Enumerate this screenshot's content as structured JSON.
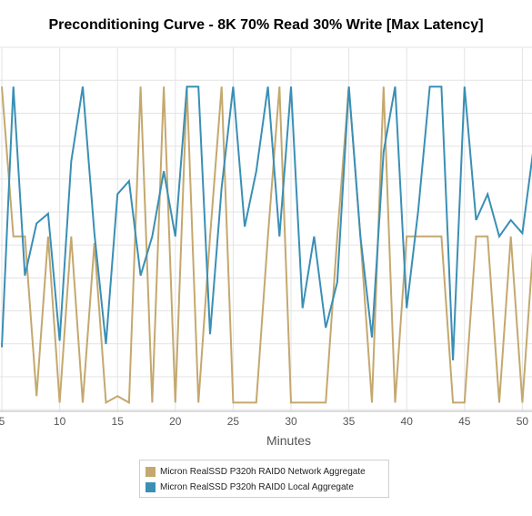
{
  "chart_data": {
    "type": "line",
    "title": "Preconditioning Curve - 8K 70% Read 30% Write [Max Latency]",
    "xlabel": "Minutes",
    "ylabel": "",
    "xlim": [
      5,
      51.5
    ],
    "ylim": [
      0,
      100
    ],
    "x_ticks": [
      5,
      10,
      15,
      20,
      25,
      30,
      35,
      40,
      45,
      50
    ],
    "grid": true,
    "legend_position": "bottom",
    "series": [
      {
        "name": "Micron RealSSD P320h RAID0 Network Aggregate",
        "color": "#c4a86e",
        "x": [
          5,
          6,
          7,
          8,
          9,
          10,
          11,
          12,
          13,
          14,
          15,
          16,
          17,
          18,
          19,
          20,
          21,
          22,
          23,
          24,
          25,
          26,
          27,
          28,
          29,
          30,
          31,
          32,
          33,
          34,
          35,
          36,
          37,
          38,
          39,
          40,
          41,
          42,
          43,
          44,
          45,
          46,
          47,
          48,
          49,
          50,
          51
        ],
        "y": [
          98,
          52,
          52,
          3,
          52,
          1,
          52,
          1,
          50,
          1,
          3,
          1,
          98,
          1,
          98,
          1,
          98,
          1,
          52,
          98,
          1,
          1,
          1,
          52,
          98,
          1,
          1,
          1,
          1,
          52,
          98,
          52,
          1,
          98,
          1,
          52,
          52,
          52,
          52,
          1,
          1,
          52,
          52,
          1,
          52,
          1,
          52
        ]
      },
      {
        "name": "Micron RealSSD P320h RAID0 Local Aggregate",
        "color": "#3a8fb5",
        "x": [
          5,
          6,
          7,
          8,
          9,
          10,
          11,
          12,
          13,
          14,
          15,
          16,
          17,
          18,
          19,
          20,
          21,
          22,
          23,
          24,
          25,
          26,
          27,
          28,
          29,
          30,
          31,
          32,
          33,
          34,
          35,
          36,
          37,
          38,
          39,
          40,
          41,
          42,
          43,
          44,
          45,
          46,
          47,
          48,
          49,
          50,
          51
        ],
        "y": [
          18,
          98,
          40,
          56,
          59,
          20,
          75,
          98,
          53,
          19,
          65,
          69,
          40,
          52,
          72,
          52,
          98,
          98,
          22,
          67,
          98,
          55,
          72,
          98,
          52,
          98,
          30,
          52,
          24,
          38,
          98,
          52,
          21,
          78,
          98,
          30,
          60,
          98,
          98,
          14,
          98,
          57,
          65,
          52,
          57,
          53,
          80
        ]
      }
    ]
  }
}
